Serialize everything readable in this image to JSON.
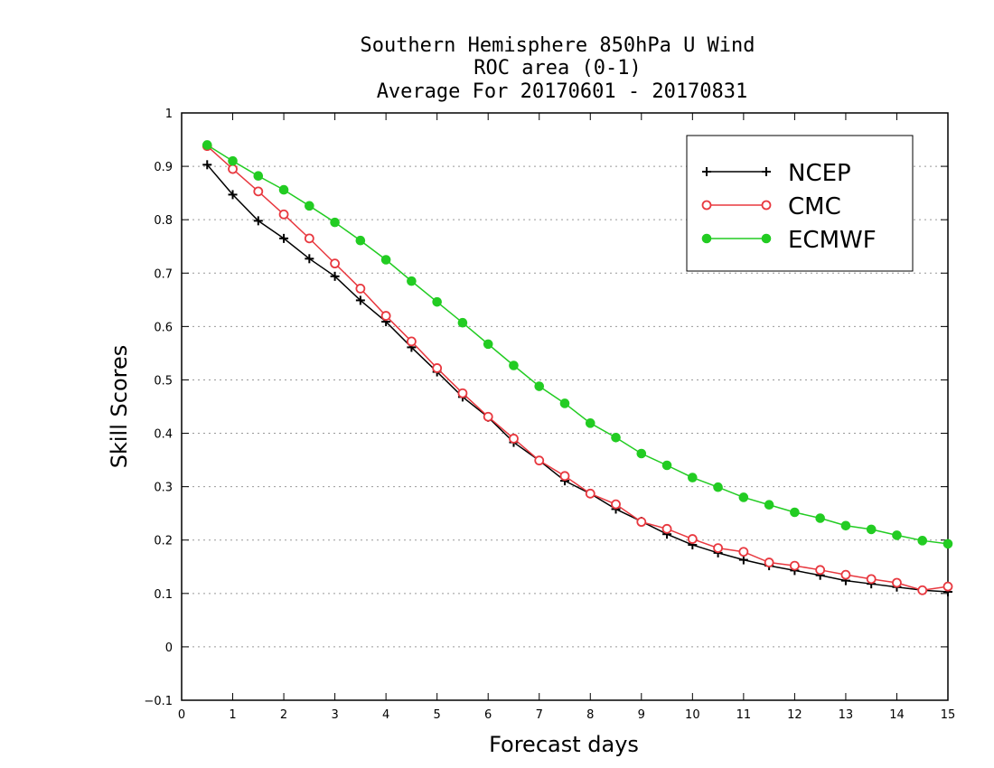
{
  "chart_data": {
    "type": "line",
    "title": [
      "Southern Hemisphere 850hPa U Wind",
      "ROC area (0-1)",
      "Average For 20170601 - 20170831"
    ],
    "xlabel": "Forecast days",
    "ylabel": "Skill Scores",
    "xlim": [
      0,
      15
    ],
    "ylim": [
      -0.1,
      1
    ],
    "xticks": [
      "0",
      "1",
      "2",
      "3",
      "4",
      "5",
      "6",
      "7",
      "8",
      "9",
      "10",
      "11",
      "12",
      "13",
      "14",
      "15"
    ],
    "yticks": [
      "−0.1",
      "0",
      "0.1",
      "0.2",
      "0.3",
      "0.4",
      "0.5",
      "0.6",
      "0.7",
      "0.8",
      "0.9",
      "1"
    ],
    "grid": "horizontal dotted",
    "legend_position": "top-right",
    "x": [
      0.5,
      1,
      1.5,
      2,
      2.5,
      3,
      3.5,
      4,
      4.5,
      5,
      5.5,
      6,
      6.5,
      7,
      7.5,
      8,
      8.5,
      9,
      9.5,
      10,
      10.5,
      11,
      11.5,
      12,
      12.5,
      13,
      13.5,
      14,
      14.5,
      15
    ],
    "series": [
      {
        "name": "NCEP",
        "color": "#000000",
        "marker": "plus",
        "values": [
          0.903,
          0.847,
          0.798,
          0.765,
          0.727,
          0.694,
          0.649,
          0.609,
          0.561,
          0.515,
          0.468,
          0.43,
          0.383,
          0.349,
          0.311,
          0.287,
          0.258,
          0.235,
          0.211,
          0.191,
          0.176,
          0.163,
          0.152,
          0.143,
          0.134,
          0.124,
          0.118,
          0.112,
          0.106,
          0.103
        ]
      },
      {
        "name": "CMC",
        "color": "#e8383f",
        "marker": "open-circle",
        "values": [
          0.938,
          0.895,
          0.853,
          0.81,
          0.765,
          0.718,
          0.671,
          0.62,
          0.572,
          0.522,
          0.475,
          0.431,
          0.39,
          0.349,
          0.32,
          0.287,
          0.267,
          0.234,
          0.221,
          0.202,
          0.185,
          0.178,
          0.158,
          0.152,
          0.144,
          0.135,
          0.127,
          0.12,
          0.106,
          0.113
        ]
      },
      {
        "name": "ECMWF",
        "color": "#22cc22",
        "marker": "filled-circle",
        "values": [
          0.94,
          0.91,
          0.882,
          0.856,
          0.826,
          0.795,
          0.761,
          0.725,
          0.685,
          0.646,
          0.607,
          0.567,
          0.527,
          0.488,
          0.456,
          0.419,
          0.392,
          0.362,
          0.34,
          0.317,
          0.299,
          0.28,
          0.266,
          0.252,
          0.241,
          0.227,
          0.22,
          0.209,
          0.199,
          0.193
        ]
      }
    ]
  }
}
